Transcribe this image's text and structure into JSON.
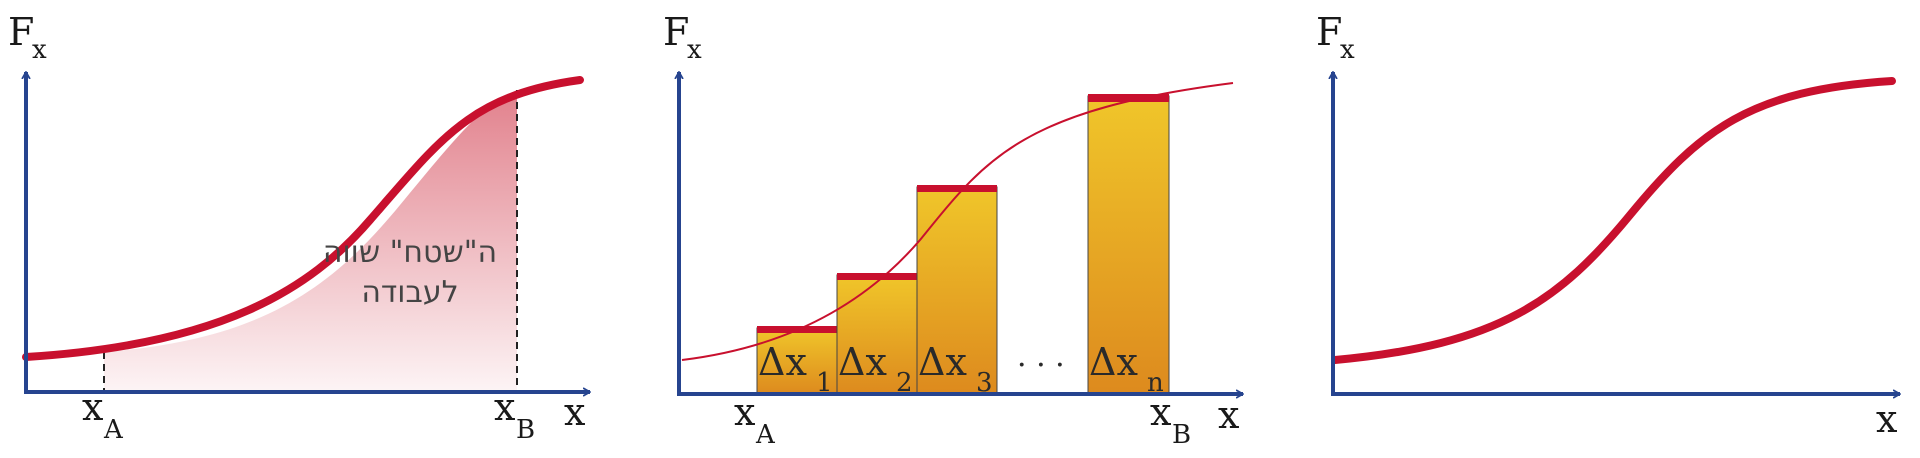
{
  "colors": {
    "axis": "#26448f",
    "curve": "#c8102e",
    "fill_top": "#e07a86",
    "bar_top": "#f0c62a",
    "bar_bottom": "#dd8a1e",
    "bar_cap": "#c8102e"
  },
  "panel1": {
    "y_label": "F",
    "y_label_sub": "x",
    "x_label": "x",
    "xa_label": "x",
    "xa_sub": "A",
    "xb_label": "x",
    "xb_sub": "B",
    "area_line1": "ה\"שטח\" שווה",
    "area_line2": "לעבודה"
  },
  "panel2": {
    "y_label": "F",
    "y_label_sub": "x",
    "x_label": "x",
    "xa_label": "x",
    "xa_sub": "A",
    "xb_label": "x",
    "xb_sub": "B",
    "ellipsis": "· · ·",
    "bars": [
      {
        "label": "Δx",
        "sub": "1"
      },
      {
        "label": "Δx",
        "sub": "2"
      },
      {
        "label": "Δx",
        "sub": "3"
      },
      {
        "label": "Δx",
        "sub": "n"
      }
    ]
  },
  "panel3": {
    "y_label": "F",
    "y_label_sub": "x",
    "x_label": "x"
  }
}
